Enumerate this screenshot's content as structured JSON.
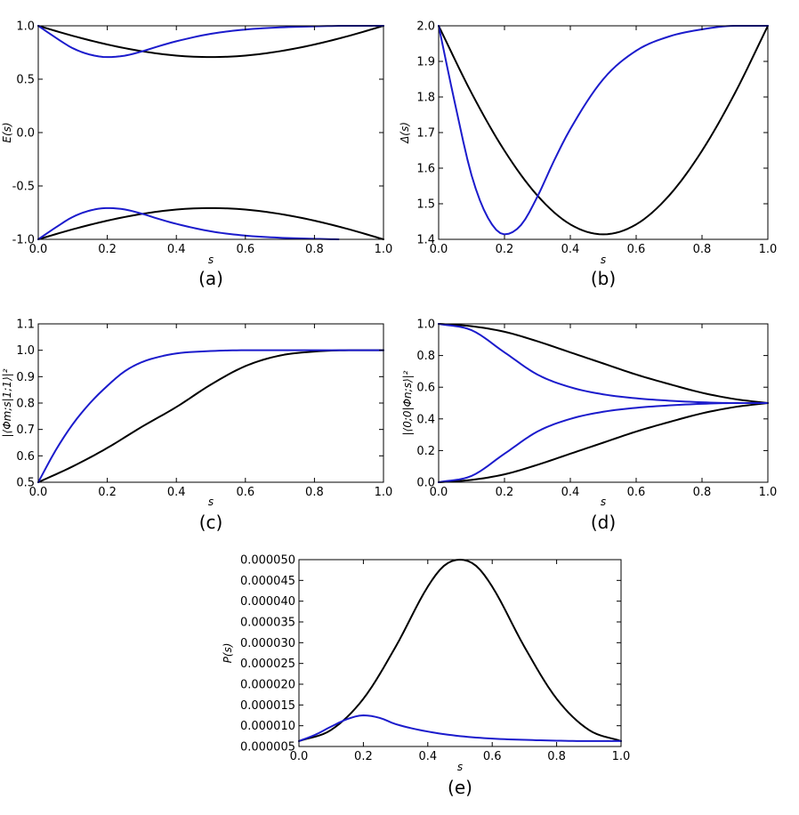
{
  "colors": {
    "black": "#000000",
    "blue": "#1b1bcc"
  },
  "chart_data": [
    {
      "id": "a",
      "type": "line",
      "panel_label": "(a)",
      "xlabel": "s",
      "ylabel": "E(s)",
      "xlim": [
        0,
        1
      ],
      "ylim": [
        -1,
        1
      ],
      "xticks": [
        "0.0",
        "0.2",
        "0.4",
        "0.6",
        "0.8",
        "1.0"
      ],
      "yticks": [
        "-1.0",
        "-0.5",
        "0.0",
        "0.5",
        "1.0"
      ],
      "grid": false,
      "series": [
        {
          "color": "black",
          "x": [
            0,
            0.1,
            0.2,
            0.3,
            0.4,
            0.5,
            0.6,
            0.7,
            0.8,
            0.9,
            1.0
          ],
          "y": [
            1.0,
            0.906,
            0.825,
            0.762,
            0.721,
            0.707,
            0.721,
            0.762,
            0.825,
            0.906,
            1.0
          ]
        },
        {
          "color": "black",
          "x": [
            0,
            0.1,
            0.2,
            0.3,
            0.4,
            0.5,
            0.6,
            0.7,
            0.8,
            0.9,
            1.0
          ],
          "y": [
            -1.0,
            -0.906,
            -0.825,
            -0.762,
            -0.721,
            -0.707,
            -0.721,
            -0.762,
            -0.825,
            -0.906,
            -1.0
          ]
        },
        {
          "color": "blue",
          "x": [
            0,
            0.05,
            0.1,
            0.15,
            0.2,
            0.25,
            0.3,
            0.35,
            0.4,
            0.5,
            0.6,
            0.7,
            0.8,
            0.9,
            1.0
          ],
          "y": [
            1.0,
            0.89,
            0.79,
            0.73,
            0.707,
            0.72,
            0.76,
            0.81,
            0.855,
            0.925,
            0.965,
            0.985,
            0.995,
            1.0,
            1.0
          ]
        },
        {
          "color": "blue",
          "x": [
            0,
            0.05,
            0.1,
            0.15,
            0.2,
            0.25,
            0.3,
            0.35,
            0.4,
            0.5,
            0.6,
            0.7,
            0.8,
            0.87
          ],
          "y": [
            -1.0,
            -0.89,
            -0.79,
            -0.73,
            -0.707,
            -0.72,
            -0.76,
            -0.81,
            -0.855,
            -0.925,
            -0.965,
            -0.985,
            -0.995,
            -1.0
          ]
        }
      ]
    },
    {
      "id": "b",
      "type": "line",
      "panel_label": "(b)",
      "xlabel": "s",
      "ylabel": "Δ(s)",
      "xlim": [
        0,
        1
      ],
      "ylim": [
        1.4,
        2.0
      ],
      "xticks": [
        "0.0",
        "0.2",
        "0.4",
        "0.6",
        "0.8",
        "1.0"
      ],
      "yticks": [
        "1.4",
        "1.5",
        "1.6",
        "1.7",
        "1.8",
        "1.9",
        "2.0"
      ],
      "grid": false,
      "series": [
        {
          "color": "black",
          "x": [
            0,
            0.1,
            0.2,
            0.3,
            0.4,
            0.5,
            0.6,
            0.7,
            0.8,
            0.9,
            1.0
          ],
          "y": [
            2.0,
            1.811,
            1.649,
            1.523,
            1.442,
            1.414,
            1.442,
            1.523,
            1.649,
            1.811,
            2.0
          ]
        },
        {
          "color": "blue",
          "x": [
            0,
            0.05,
            0.1,
            0.15,
            0.2,
            0.25,
            0.3,
            0.35,
            0.4,
            0.5,
            0.6,
            0.7,
            0.8,
            0.9,
            1.0
          ],
          "y": [
            2.0,
            1.78,
            1.58,
            1.46,
            1.414,
            1.44,
            1.52,
            1.62,
            1.71,
            1.85,
            1.93,
            1.97,
            1.99,
            2.0,
            2.0
          ]
        }
      ]
    },
    {
      "id": "c",
      "type": "line",
      "panel_label": "(c)",
      "xlabel": "s",
      "ylabel": "|⟨Φm;s|1;1⟩|²",
      "xlim": [
        0,
        1
      ],
      "ylim": [
        0.5,
        1.1
      ],
      "xticks": [
        "0.0",
        "0.2",
        "0.4",
        "0.6",
        "0.8",
        "1.0"
      ],
      "yticks": [
        "0.5",
        "0.6",
        "0.7",
        "0.8",
        "0.9",
        "1.0",
        "1.1"
      ],
      "grid": false,
      "series": [
        {
          "color": "black",
          "x": [
            0,
            0.1,
            0.2,
            0.3,
            0.4,
            0.5,
            0.6,
            0.7,
            0.8,
            0.9,
            1.0
          ],
          "y": [
            0.5,
            0.56,
            0.63,
            0.71,
            0.785,
            0.87,
            0.94,
            0.98,
            0.995,
            1.0,
            1.0
          ]
        },
        {
          "color": "blue",
          "x": [
            0,
            0.05,
            0.1,
            0.15,
            0.2,
            0.25,
            0.3,
            0.35,
            0.4,
            0.5,
            0.6,
            0.7,
            0.8,
            1.0
          ],
          "y": [
            0.5,
            0.62,
            0.72,
            0.8,
            0.865,
            0.92,
            0.955,
            0.975,
            0.988,
            0.997,
            1.0,
            1.0,
            1.0,
            1.0
          ]
        }
      ]
    },
    {
      "id": "d",
      "type": "line",
      "panel_label": "(d)",
      "xlabel": "s",
      "ylabel": "|⟨0;0|Φn;s⟩|²",
      "xlim": [
        0,
        1
      ],
      "ylim": [
        0,
        1
      ],
      "xticks": [
        "0.0",
        "0.2",
        "0.4",
        "0.6",
        "0.8",
        "1.0"
      ],
      "yticks": [
        "0.0",
        "0.2",
        "0.4",
        "0.6",
        "0.8",
        "1.0"
      ],
      "grid": false,
      "series": [
        {
          "color": "black",
          "x": [
            0,
            0.1,
            0.2,
            0.3,
            0.4,
            0.5,
            0.6,
            0.7,
            0.8,
            0.9,
            1.0
          ],
          "y": [
            1.0,
            0.985,
            0.95,
            0.89,
            0.82,
            0.75,
            0.68,
            0.62,
            0.565,
            0.525,
            0.5
          ]
        },
        {
          "color": "black",
          "x": [
            0,
            0.1,
            0.2,
            0.3,
            0.4,
            0.5,
            0.6,
            0.7,
            0.8,
            0.9,
            1.0
          ],
          "y": [
            0.0,
            0.015,
            0.05,
            0.11,
            0.18,
            0.25,
            0.32,
            0.38,
            0.435,
            0.475,
            0.5
          ]
        },
        {
          "color": "blue",
          "x": [
            0,
            0.1,
            0.2,
            0.3,
            0.4,
            0.5,
            0.6,
            0.7,
            0.8,
            0.9,
            1.0
          ],
          "y": [
            1.0,
            0.96,
            0.82,
            0.68,
            0.6,
            0.555,
            0.53,
            0.515,
            0.505,
            0.5,
            0.5
          ]
        },
        {
          "color": "blue",
          "x": [
            0,
            0.1,
            0.2,
            0.3,
            0.4,
            0.5,
            0.6,
            0.7,
            0.8,
            0.9,
            1.0
          ],
          "y": [
            0.0,
            0.04,
            0.18,
            0.32,
            0.4,
            0.445,
            0.47,
            0.485,
            0.495,
            0.5,
            0.5
          ]
        }
      ]
    },
    {
      "id": "e",
      "type": "line",
      "panel_label": "(e)",
      "xlabel": "s",
      "ylabel": "P(s)",
      "xlim": [
        0,
        1
      ],
      "ylim": [
        5e-06,
        5e-05
      ],
      "xticks": [
        "0.0",
        "0.2",
        "0.4",
        "0.6",
        "0.8",
        "1.0"
      ],
      "yticks": [
        "0.000005",
        "0.000010",
        "0.000015",
        "0.000020",
        "0.000025",
        "0.000030",
        "0.000035",
        "0.000040",
        "0.000045",
        "0.000050"
      ],
      "grid": false,
      "series": [
        {
          "color": "black",
          "x": [
            0,
            0.1,
            0.2,
            0.3,
            0.4,
            0.45,
            0.5,
            0.55,
            0.6,
            0.7,
            0.8,
            0.9,
            1.0
          ],
          "y": [
            6.3e-06,
            9e-06,
            1.65e-05,
            2.9e-05,
            4.35e-05,
            4.85e-05,
            5e-05,
            4.85e-05,
            4.35e-05,
            2.9e-05,
            1.65e-05,
            9e-06,
            6.3e-06
          ]
        },
        {
          "color": "blue",
          "x": [
            0,
            0.05,
            0.1,
            0.15,
            0.2,
            0.25,
            0.3,
            0.4,
            0.5,
            0.6,
            0.7,
            0.8,
            0.9,
            1.0
          ],
          "y": [
            6.3e-06,
            7.8e-06,
            9.8e-06,
            1.16e-05,
            1.25e-05,
            1.19e-05,
            1.04e-05,
            8.6e-06,
            7.5e-06,
            6.9e-06,
            6.6e-06,
            6.4e-06,
            6.3e-06,
            6.3e-06
          ]
        }
      ]
    }
  ]
}
